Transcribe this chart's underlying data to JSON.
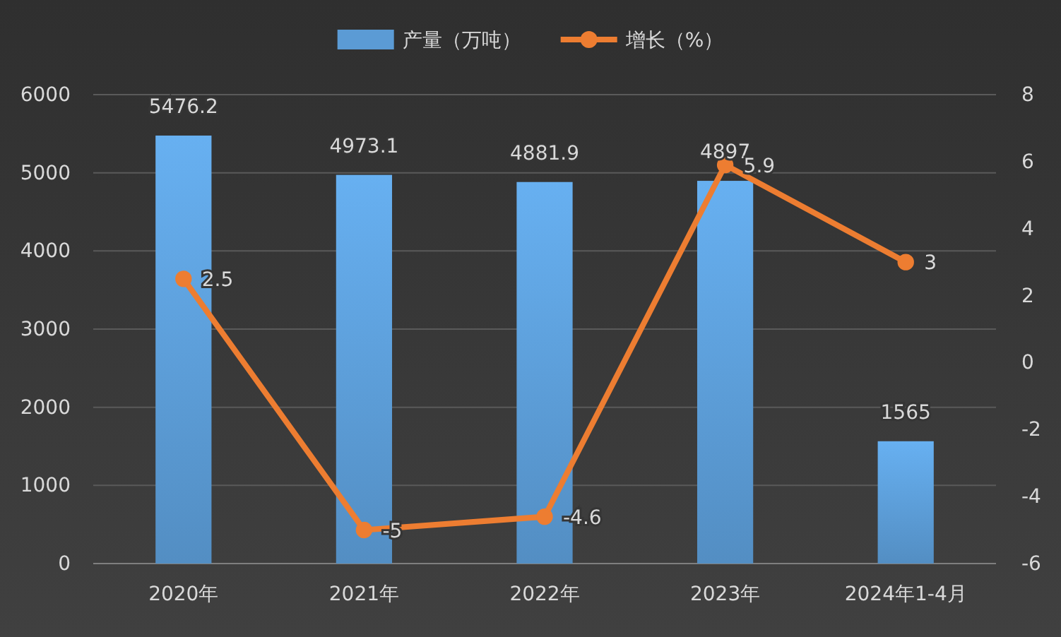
{
  "chart_data": {
    "type": "bar",
    "categories": [
      "2020年",
      "2021年",
      "2022年",
      "2023年",
      "2024年1-4月"
    ],
    "series": [
      {
        "name": "产量（万吨）",
        "color": "#5b9bd5",
        "values": [
          5476.2,
          4973.1,
          4881.9,
          4897,
          1565
        ]
      },
      {
        "name": "增长（%）",
        "type": "line",
        "axis": "y2",
        "color": "#ed7d31",
        "values": [
          2.5,
          -5,
          -4.6,
          5.9,
          3
        ]
      }
    ],
    "ylim": [
      0,
      6000
    ],
    "yticks": [
      0,
      1000,
      2000,
      3000,
      4000,
      5000,
      6000
    ],
    "y2lim": [
      -6,
      8
    ],
    "y2ticks": [
      -6,
      -4,
      -2,
      0,
      2,
      4,
      6,
      8
    ],
    "grid": "y",
    "legend": "top",
    "marker": "circle",
    "line_style": "solid",
    "data_labels": true
  }
}
